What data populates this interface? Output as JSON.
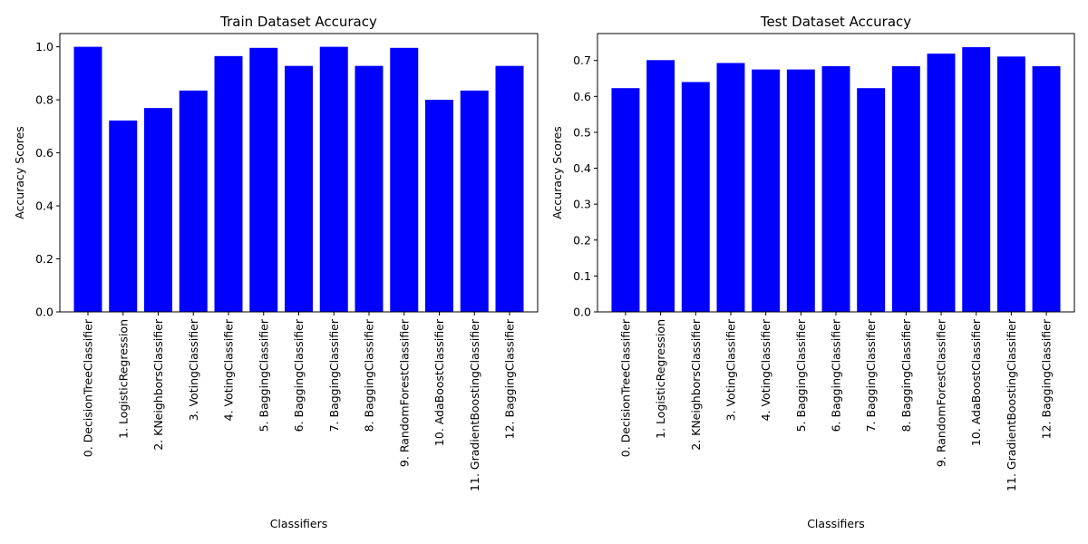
{
  "chart_data": [
    {
      "type": "bar",
      "title": "Train Dataset Accuracy",
      "xlabel": "Classifiers",
      "ylabel": "Accuracy Scores",
      "categories": [
        "0. DecisionTreeClassifier",
        "1. LogisticRegression",
        "2. KNeighborsClassifier",
        "3. VotingClassifier",
        "4. VotingClassifier",
        "5. BaggingClassifier",
        "6. BaggingClassifier",
        "7. BaggingClassifier",
        "8. BaggingClassifier",
        "9. RandomForestClassifier",
        "10. AdaBoostClassifier",
        "11. GradientBoostingClassifier",
        "12. BaggingClassifier"
      ],
      "values": [
        1.0,
        0.722,
        0.769,
        0.835,
        0.965,
        0.996,
        0.928,
        1.0,
        0.928,
        0.996,
        0.8,
        0.835,
        0.928
      ],
      "ylim": [
        0,
        1.05
      ],
      "yticks": [
        0.0,
        0.2,
        0.4,
        0.6,
        0.8,
        1.0
      ],
      "ytick_labels": [
        "0.0",
        "0.2",
        "0.4",
        "0.6",
        "0.8",
        "1.0"
      ],
      "bar_color": "#0000ff",
      "grid": false,
      "legend": "none"
    },
    {
      "type": "bar",
      "title": "Test Dataset Accuracy",
      "xlabel": "Classifiers",
      "ylabel": "Accuracy Scores",
      "categories": [
        "0. DecisionTreeClassifier",
        "1. LogisticRegression",
        "2. KNeighborsClassifier",
        "3. VotingClassifier",
        "4. VotingClassifier",
        "5. BaggingClassifier",
        "6. BaggingClassifier",
        "7. BaggingClassifier",
        "8. BaggingClassifier",
        "9. RandomForestClassifier",
        "10. AdaBoostClassifier",
        "11. GradientBoostingClassifier",
        "12. BaggingClassifier"
      ],
      "values": [
        0.623,
        0.701,
        0.64,
        0.693,
        0.675,
        0.675,
        0.684,
        0.623,
        0.684,
        0.719,
        0.737,
        0.711,
        0.684
      ],
      "ylim": [
        0,
        0.775
      ],
      "yticks": [
        0.0,
        0.1,
        0.2,
        0.3,
        0.4,
        0.5,
        0.6,
        0.7
      ],
      "ytick_labels": [
        "0.0",
        "0.1",
        "0.2",
        "0.3",
        "0.4",
        "0.5",
        "0.6",
        "0.7"
      ],
      "bar_color": "#0000ff",
      "grid": false,
      "legend": "none"
    }
  ]
}
